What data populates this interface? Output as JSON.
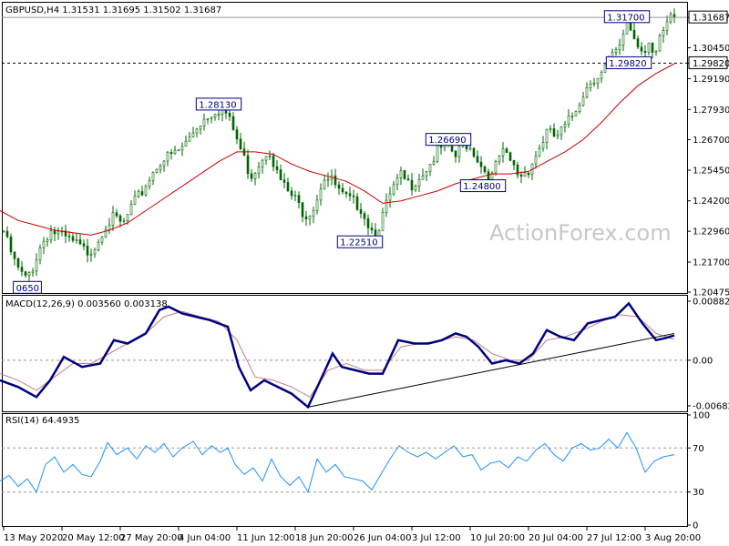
{
  "window": {
    "header": "GBPUSD,H4  1.31531 1.31695 1.31502 1.31687",
    "watermark": "ActionForex.com"
  },
  "chart_data": [
    {
      "type": "candlestick",
      "title": "GBPUSD,H4  1.31531 1.31695 1.31502 1.31687",
      "symbol": "GBPUSD",
      "timeframe": "H4",
      "ohlc_last": {
        "open": 1.31531,
        "high": 1.31695,
        "low": 1.31502,
        "close": 1.31687
      },
      "ylim": [
        1.20475,
        1.3225
      ],
      "yticks": [
        "1.31687",
        "1.30450",
        "1.29820",
        "1.29190",
        "1.27930",
        "1.26700",
        "1.25450",
        "1.24200",
        "1.22960",
        "1.21700",
        "1.20475"
      ],
      "current_price": "1.31687",
      "reference_price": "1.29820",
      "price_path": [
        [
          0,
          1.236
        ],
        [
          5,
          1.228
        ],
        [
          11,
          1.222
        ],
        [
          18,
          1.215
        ],
        [
          28,
          1.21
        ],
        [
          35,
          1.214
        ],
        [
          45,
          1.224
        ],
        [
          55,
          1.23
        ],
        [
          65,
          1.228
        ],
        [
          75,
          1.226
        ],
        [
          85,
          1.224
        ],
        [
          95,
          1.221
        ],
        [
          105,
          1.224
        ],
        [
          115,
          1.232
        ],
        [
          125,
          1.235
        ],
        [
          135,
          1.232
        ],
        [
          145,
          1.24
        ],
        [
          155,
          1.245
        ],
        [
          165,
          1.252
        ],
        [
          175,
          1.258
        ],
        [
          185,
          1.26
        ],
        [
          195,
          1.262
        ],
        [
          205,
          1.266
        ],
        [
          215,
          1.272
        ],
        [
          225,
          1.276
        ],
        [
          235,
          1.279
        ],
        [
          245,
          1.28
        ],
        [
          255,
          1.272
        ],
        [
          265,
          1.262
        ],
        [
          275,
          1.252
        ],
        [
          285,
          1.258
        ],
        [
          295,
          1.264
        ],
        [
          305,
          1.252
        ],
        [
          315,
          1.246
        ],
        [
          325,
          1.242
        ],
        [
          335,
          1.236
        ],
        [
          345,
          1.24
        ],
        [
          355,
          1.252
        ],
        [
          365,
          1.25
        ],
        [
          375,
          1.244
        ],
        [
          385,
          1.242
        ],
        [
          395,
          1.24
        ],
        [
          405,
          1.232
        ],
        [
          412,
          1.228
        ],
        [
          420,
          1.236
        ],
        [
          430,
          1.246
        ],
        [
          440,
          1.252
        ],
        [
          450,
          1.248
        ],
        [
          460,
          1.252
        ],
        [
          470,
          1.256
        ],
        [
          480,
          1.262
        ],
        [
          490,
          1.265
        ],
        [
          500,
          1.26
        ],
        [
          510,
          1.266
        ],
        [
          520,
          1.262
        ],
        [
          530,
          1.255
        ],
        [
          540,
          1.252
        ],
        [
          550,
          1.262
        ],
        [
          560,
          1.258
        ],
        [
          570,
          1.252
        ],
        [
          580,
          1.255
        ],
        [
          590,
          1.262
        ],
        [
          600,
          1.27
        ],
        [
          610,
          1.268
        ],
        [
          620,
          1.272
        ],
        [
          630,
          1.278
        ],
        [
          640,
          1.286
        ],
        [
          650,
          1.292
        ],
        [
          660,
          1.294
        ],
        [
          670,
          1.3
        ],
        [
          680,
          1.304
        ],
        [
          688,
          1.316
        ],
        [
          694,
          1.31
        ],
        [
          700,
          1.306
        ],
        [
          706,
          1.303
        ],
        [
          712,
          1.308
        ],
        [
          718,
          1.3
        ],
        [
          724,
          1.307
        ],
        [
          730,
          1.312
        ],
        [
          736,
          1.316
        ],
        [
          740,
          1.317
        ]
      ],
      "moving_average": [
        [
          0,
          1.238
        ],
        [
          20,
          1.234
        ],
        [
          40,
          1.232
        ],
        [
          60,
          1.23
        ],
        [
          80,
          1.229
        ],
        [
          100,
          1.228
        ],
        [
          120,
          1.23
        ],
        [
          140,
          1.233
        ],
        [
          160,
          1.238
        ],
        [
          180,
          1.243
        ],
        [
          200,
          1.248
        ],
        [
          220,
          1.253
        ],
        [
          240,
          1.258
        ],
        [
          260,
          1.262
        ],
        [
          280,
          1.262
        ],
        [
          300,
          1.261
        ],
        [
          320,
          1.257
        ],
        [
          340,
          1.254
        ],
        [
          360,
          1.252
        ],
        [
          380,
          1.25
        ],
        [
          400,
          1.246
        ],
        [
          420,
          1.241
        ],
        [
          440,
          1.242
        ],
        [
          460,
          1.244
        ],
        [
          480,
          1.246
        ],
        [
          500,
          1.249
        ],
        [
          520,
          1.251
        ],
        [
          540,
          1.253
        ],
        [
          560,
          1.253
        ],
        [
          580,
          1.254
        ],
        [
          600,
          1.258
        ],
        [
          620,
          1.262
        ],
        [
          640,
          1.267
        ],
        [
          660,
          1.274
        ],
        [
          680,
          1.282
        ],
        [
          700,
          1.289
        ],
        [
          720,
          1.294
        ],
        [
          740,
          1.298
        ]
      ],
      "annotations": [
        {
          "text": "1.31700",
          "x": 688,
          "y": 1.317
        },
        {
          "text": "1.29820",
          "x": 690,
          "y": 1.2982
        },
        {
          "text": "1.28130",
          "x": 240,
          "y": 1.2813
        },
        {
          "text": "1.26690",
          "x": 492,
          "y": 1.2669
        },
        {
          "text": "1.24800",
          "x": 530,
          "y": 1.248
        },
        {
          "text": "1.22510",
          "x": 395,
          "y": 1.2251
        },
        {
          "text": "0650",
          "x": 30,
          "y": 1.2065
        }
      ],
      "watermark": "ActionForex.com"
    },
    {
      "type": "line",
      "title": "MACD(12,26,9) 0.003560 0.003138",
      "ylim": [
        -0.0075,
        0.0095
      ],
      "yticks": [
        "0.008824",
        "0.00",
        "-0.006825"
      ],
      "series": [
        {
          "color": "#000080",
          "points": [
            [
              0,
              -0.003
            ],
            [
              20,
              -0.004
            ],
            [
              40,
              -0.0055
            ],
            [
              55,
              -0.003
            ],
            [
              70,
              0.0005
            ],
            [
              90,
              -0.001
            ],
            [
              110,
              -0.0005
            ],
            [
              125,
              0.003
            ],
            [
              140,
              0.0025
            ],
            [
              160,
              0.004
            ],
            [
              175,
              0.0075
            ],
            [
              185,
              0.008
            ],
            [
              200,
              0.007
            ],
            [
              215,
              0.0065
            ],
            [
              230,
              0.006
            ],
            [
              250,
              0.005
            ],
            [
              262,
              -0.001
            ],
            [
              275,
              -0.0045
            ],
            [
              290,
              -0.003
            ],
            [
              305,
              -0.004
            ],
            [
              320,
              -0.005
            ],
            [
              338,
              -0.007
            ],
            [
              355,
              -0.002
            ],
            [
              365,
              0.001
            ],
            [
              375,
              -0.001
            ],
            [
              390,
              -0.0015
            ],
            [
              405,
              -0.002
            ],
            [
              420,
              -0.002
            ],
            [
              437,
              0.003
            ],
            [
              455,
              0.0025
            ],
            [
              470,
              0.0025
            ],
            [
              485,
              0.003
            ],
            [
              500,
              0.004
            ],
            [
              512,
              0.0035
            ],
            [
              525,
              0.002
            ],
            [
              540,
              -0.0005
            ],
            [
              555,
              0.0
            ],
            [
              570,
              -0.0005
            ],
            [
              585,
              0.001
            ],
            [
              600,
              0.0045
            ],
            [
              615,
              0.0035
            ],
            [
              630,
              0.003
            ],
            [
              645,
              0.0055
            ],
            [
              660,
              0.006
            ],
            [
              675,
              0.0065
            ],
            [
              690,
              0.0085
            ],
            [
              705,
              0.0055
            ],
            [
              720,
              0.003
            ],
            [
              730,
              0.0033
            ],
            [
              740,
              0.0037
            ]
          ]
        },
        {
          "color": "#c08080",
          "points": [
            [
              0,
              -0.002
            ],
            [
              20,
              -0.003
            ],
            [
              40,
              -0.0045
            ],
            [
              60,
              -0.0025
            ],
            [
              80,
              -0.0005
            ],
            [
              100,
              -0.0005
            ],
            [
              120,
              0.001
            ],
            [
              140,
              0.0025
            ],
            [
              160,
              0.004
            ],
            [
              180,
              0.0065
            ],
            [
              200,
              0.0073
            ],
            [
              220,
              0.0065
            ],
            [
              240,
              0.0058
            ],
            [
              260,
              0.003
            ],
            [
              280,
              -0.0025
            ],
            [
              300,
              -0.003
            ],
            [
              320,
              -0.004
            ],
            [
              340,
              -0.0055
            ],
            [
              360,
              -0.0015
            ],
            [
              380,
              -0.0005
            ],
            [
              400,
              -0.0015
            ],
            [
              420,
              -0.0015
            ],
            [
              440,
              0.002
            ],
            [
              460,
              0.0025
            ],
            [
              480,
              0.0028
            ],
            [
              500,
              0.0035
            ],
            [
              520,
              0.003
            ],
            [
              540,
              0.001
            ],
            [
              560,
              0.0
            ],
            [
              580,
              0.0
            ],
            [
              600,
              0.003
            ],
            [
              620,
              0.0035
            ],
            [
              640,
              0.0045
            ],
            [
              660,
              0.0058
            ],
            [
              680,
              0.0068
            ],
            [
              700,
              0.0065
            ],
            [
              720,
              0.004
            ],
            [
              740,
              0.0031
            ]
          ]
        }
      ],
      "trendline": [
        [
          338,
          -0.007
        ],
        [
          740,
          0.004
        ]
      ]
    },
    {
      "type": "line",
      "title": "RSI(14) 64.4935",
      "ylim": [
        0,
        100
      ],
      "yticks": [
        "100",
        "70",
        "30",
        "0"
      ],
      "levels": [
        70,
        30
      ],
      "series": [
        {
          "color": "#1e90ff",
          "points": [
            [
              0,
              40
            ],
            [
              10,
              45
            ],
            [
              20,
              35
            ],
            [
              30,
              42
            ],
            [
              40,
              30
            ],
            [
              50,
              55
            ],
            [
              60,
              62
            ],
            [
              70,
              48
            ],
            [
              80,
              55
            ],
            [
              90,
              46
            ],
            [
              100,
              44
            ],
            [
              110,
              58
            ],
            [
              118,
              75
            ],
            [
              128,
              64
            ],
            [
              140,
              70
            ],
            [
              150,
              60
            ],
            [
              160,
              72
            ],
            [
              170,
              66
            ],
            [
              180,
              74
            ],
            [
              190,
              62
            ],
            [
              200,
              70
            ],
            [
              212,
              76
            ],
            [
              222,
              64
            ],
            [
              232,
              72
            ],
            [
              242,
              66
            ],
            [
              250,
              70
            ],
            [
              258,
              55
            ],
            [
              268,
              46
            ],
            [
              278,
              52
            ],
            [
              288,
              40
            ],
            [
              298,
              60
            ],
            [
              308,
              44
            ],
            [
              318,
              36
            ],
            [
              328,
              44
            ],
            [
              338,
              30
            ],
            [
              348,
              60
            ],
            [
              358,
              48
            ],
            [
              368,
              55
            ],
            [
              378,
              44
            ],
            [
              388,
              42
            ],
            [
              398,
              40
            ],
            [
              408,
              32
            ],
            [
              418,
              46
            ],
            [
              428,
              60
            ],
            [
              438,
              72
            ],
            [
              448,
              66
            ],
            [
              458,
              62
            ],
            [
              468,
              66
            ],
            [
              478,
              60
            ],
            [
              488,
              66
            ],
            [
              498,
              72
            ],
            [
              508,
              62
            ],
            [
              518,
              64
            ],
            [
              528,
              50
            ],
            [
              538,
              56
            ],
            [
              548,
              58
            ],
            [
              558,
              52
            ],
            [
              568,
              62
            ],
            [
              578,
              58
            ],
            [
              588,
              68
            ],
            [
              598,
              74
            ],
            [
              608,
              64
            ],
            [
              618,
              58
            ],
            [
              628,
              70
            ],
            [
              638,
              74
            ],
            [
              648,
              68
            ],
            [
              658,
              70
            ],
            [
              668,
              78
            ],
            [
              678,
              70
            ],
            [
              688,
              84
            ],
            [
              698,
              70
            ],
            [
              708,
              48
            ],
            [
              718,
              58
            ],
            [
              728,
              62
            ],
            [
              740,
              64
            ]
          ]
        }
      ]
    }
  ],
  "x_axis": {
    "labels": [
      "13 May 2020",
      "20 May 12:00",
      "27 May 20:00",
      "4 Jun 04:00",
      "11 Jun 12:00",
      "18 Jun 20:00",
      "26 Jun 04:00",
      "3 Jul 12:00",
      "10 Jul 20:00",
      "20 Jul 04:00",
      "27 Jul 12:00",
      "3 Aug 20:00"
    ]
  },
  "colors": {
    "candle": "#006400",
    "ma": "#cc0000",
    "macd": "#000080",
    "signal": "#c08080",
    "rsi": "#1e90ff",
    "watermark": "#c8c8c8"
  }
}
